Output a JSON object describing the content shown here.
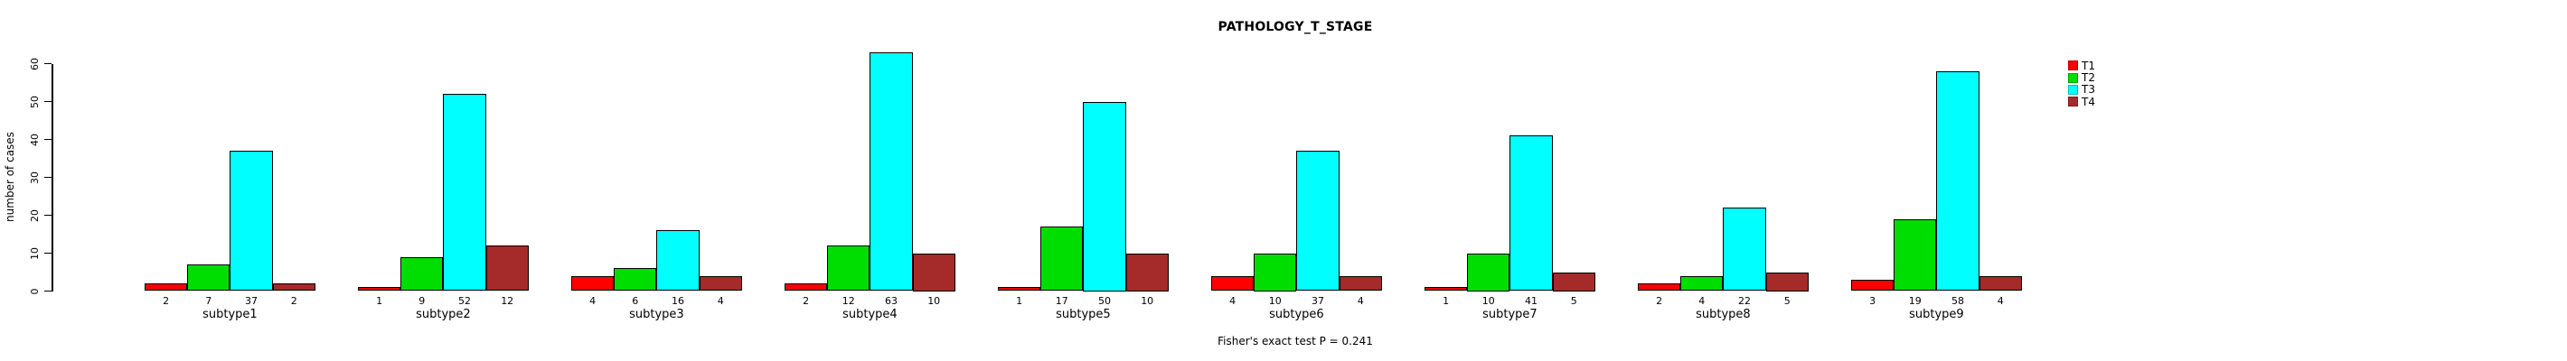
{
  "chart_data": {
    "type": "bar",
    "title": "PATHOLOGY_T_STAGE",
    "ylabel": "number of cases",
    "xlabel": "",
    "footer": "Fisher's exact test P = 0.241",
    "ylim": [
      0,
      60
    ],
    "yticks": [
      0,
      10,
      20,
      30,
      40,
      50,
      60
    ],
    "grid": false,
    "bar_value_labels_shown": true,
    "categories": [
      "subtype1",
      "subtype2",
      "subtype3",
      "subtype4",
      "subtype5",
      "subtype6",
      "subtype7",
      "subtype8",
      "subtype9"
    ],
    "series": [
      {
        "name": "T1",
        "color": "#FF0000",
        "values": [
          2,
          1,
          4,
          2,
          1,
          4,
          1,
          2,
          3
        ]
      },
      {
        "name": "T2",
        "color": "#00DD00",
        "values": [
          7,
          9,
          6,
          12,
          17,
          10,
          10,
          4,
          19
        ]
      },
      {
        "name": "T3",
        "color": "#00FFFF",
        "values": [
          37,
          52,
          16,
          63,
          50,
          37,
          41,
          22,
          58
        ]
      },
      {
        "name": "T4",
        "color": "#A52A2A",
        "values": [
          2,
          12,
          4,
          10,
          10,
          4,
          5,
          5,
          4
        ]
      }
    ],
    "legend": {
      "position": "top-right",
      "entries": [
        "T1",
        "T2",
        "T3",
        "T4"
      ]
    }
  }
}
